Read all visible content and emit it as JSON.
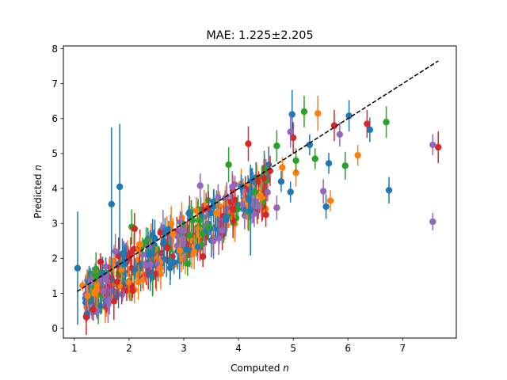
{
  "chart_data": {
    "type": "scatter",
    "title": "MAE: 1.225±2.205",
    "xlabel": "Computed",
    "ylabel": "Predicted",
    "axis_symbol": "n",
    "xlim": [
      0.8,
      7.98
    ],
    "ylim": [
      -0.28,
      8.08
    ],
    "xticks": [
      1,
      2,
      3,
      4,
      5,
      6,
      7
    ],
    "yticks": [
      0,
      1,
      2,
      3,
      4,
      5,
      6,
      7,
      8
    ],
    "grid": false,
    "reference_line": {
      "style": "dashed",
      "color": "#000000",
      "x": [
        1.05,
        7.65
      ],
      "y": [
        1.05,
        7.65
      ]
    },
    "colors": [
      "#1f77b4",
      "#ff7f0e",
      "#2ca02c",
      "#d62728",
      "#9467bd"
    ],
    "series": [
      {
        "color": "#1f77b4",
        "points": [
          {
            "x": 1.06,
            "y": 1.72,
            "err": 1.62
          },
          {
            "x": 1.68,
            "y": 3.55,
            "err": 2.2
          },
          {
            "x": 1.83,
            "y": 4.05,
            "err": 1.8
          },
          {
            "x": 2.35,
            "y": 2.1,
            "err": 0.4
          },
          {
            "x": 3.05,
            "y": 2.25,
            "err": 0.35
          },
          {
            "x": 3.5,
            "y": 3.3,
            "err": 0.4
          },
          {
            "x": 4.05,
            "y": 4.05,
            "err": 0.35
          },
          {
            "x": 4.22,
            "y": 3.38,
            "err": 1.3
          },
          {
            "x": 4.3,
            "y": 3.9,
            "err": 0.3
          },
          {
            "x": 4.78,
            "y": 4.2,
            "err": 0.3
          },
          {
            "x": 4.95,
            "y": 3.9,
            "err": 0.3
          },
          {
            "x": 4.98,
            "y": 6.12,
            "err": 0.7
          },
          {
            "x": 5.3,
            "y": 5.25,
            "err": 0.3
          },
          {
            "x": 5.6,
            "y": 3.48,
            "err": 0.35
          },
          {
            "x": 5.65,
            "y": 4.72,
            "err": 0.3
          },
          {
            "x": 6.02,
            "y": 6.08,
            "err": 0.45
          },
          {
            "x": 6.4,
            "y": 5.68,
            "err": 0.35
          },
          {
            "x": 6.75,
            "y": 3.95,
            "err": 0.38
          }
        ]
      },
      {
        "color": "#ff7f0e",
        "points": [
          {
            "x": 1.15,
            "y": 1.22,
            "err": 0.15
          },
          {
            "x": 2.2,
            "y": 2.4,
            "err": 0.3
          },
          {
            "x": 2.8,
            "y": 2.7,
            "err": 0.45
          },
          {
            "x": 3.6,
            "y": 3.3,
            "err": 0.4
          },
          {
            "x": 4.8,
            "y": 4.6,
            "err": 0.3
          },
          {
            "x": 5.05,
            "y": 4.45,
            "err": 0.4
          },
          {
            "x": 5.45,
            "y": 6.15,
            "err": 0.5
          },
          {
            "x": 5.68,
            "y": 3.65,
            "err": 0.3
          },
          {
            "x": 6.18,
            "y": 4.95,
            "err": 0.3
          }
        ]
      },
      {
        "color": "#2ca02c",
        "points": [
          {
            "x": 1.4,
            "y": 1.5,
            "err": 0.2
          },
          {
            "x": 2.05,
            "y": 2.9,
            "err": 0.5
          },
          {
            "x": 3.07,
            "y": 1.85,
            "err": 0.35
          },
          {
            "x": 3.45,
            "y": 2.9,
            "err": 0.4
          },
          {
            "x": 3.82,
            "y": 4.68,
            "err": 0.5
          },
          {
            "x": 4.3,
            "y": 3.9,
            "err": 0.5
          },
          {
            "x": 4.7,
            "y": 5.22,
            "err": 0.45
          },
          {
            "x": 5.05,
            "y": 4.8,
            "err": 0.35
          },
          {
            "x": 5.2,
            "y": 6.2,
            "err": 0.45
          },
          {
            "x": 5.4,
            "y": 4.85,
            "err": 0.3
          },
          {
            "x": 5.95,
            "y": 4.65,
            "err": 0.4
          },
          {
            "x": 6.7,
            "y": 5.9,
            "err": 0.45
          }
        ]
      },
      {
        "color": "#d62728",
        "points": [
          {
            "x": 1.48,
            "y": 1.9,
            "err": 0.25
          },
          {
            "x": 2.1,
            "y": 2.85,
            "err": 0.45
          },
          {
            "x": 2.7,
            "y": 2.3,
            "err": 0.45
          },
          {
            "x": 3.35,
            "y": 2.05,
            "err": 0.3
          },
          {
            "x": 3.9,
            "y": 3.4,
            "err": 0.45
          },
          {
            "x": 4.18,
            "y": 5.28,
            "err": 0.5
          },
          {
            "x": 4.5,
            "y": 3.25,
            "err": 0.35
          },
          {
            "x": 5.0,
            "y": 5.45,
            "err": 0.45
          },
          {
            "x": 5.75,
            "y": 5.8,
            "err": 0.45
          },
          {
            "x": 6.35,
            "y": 5.85,
            "err": 0.4
          },
          {
            "x": 7.65,
            "y": 5.18,
            "err": 0.45
          }
        ]
      },
      {
        "color": "#9467bd",
        "points": [
          {
            "x": 1.3,
            "y": 1.35,
            "err": 0.2
          },
          {
            "x": 1.75,
            "y": 2.2,
            "err": 0.5
          },
          {
            "x": 2.3,
            "y": 1.8,
            "err": 0.45
          },
          {
            "x": 2.95,
            "y": 2.8,
            "err": 0.5
          },
          {
            "x": 3.3,
            "y": 4.08,
            "err": 0.35
          },
          {
            "x": 3.7,
            "y": 2.8,
            "err": 0.35
          },
          {
            "x": 4.7,
            "y": 3.45,
            "err": 0.35
          },
          {
            "x": 4.95,
            "y": 5.62,
            "err": 0.45
          },
          {
            "x": 5.55,
            "y": 3.92,
            "err": 0.35
          },
          {
            "x": 5.85,
            "y": 5.55,
            "err": 0.35
          },
          {
            "x": 7.55,
            "y": 5.25,
            "err": 0.3
          },
          {
            "x": 7.55,
            "y": 3.05,
            "err": 0.25
          }
        ]
      }
    ]
  }
}
